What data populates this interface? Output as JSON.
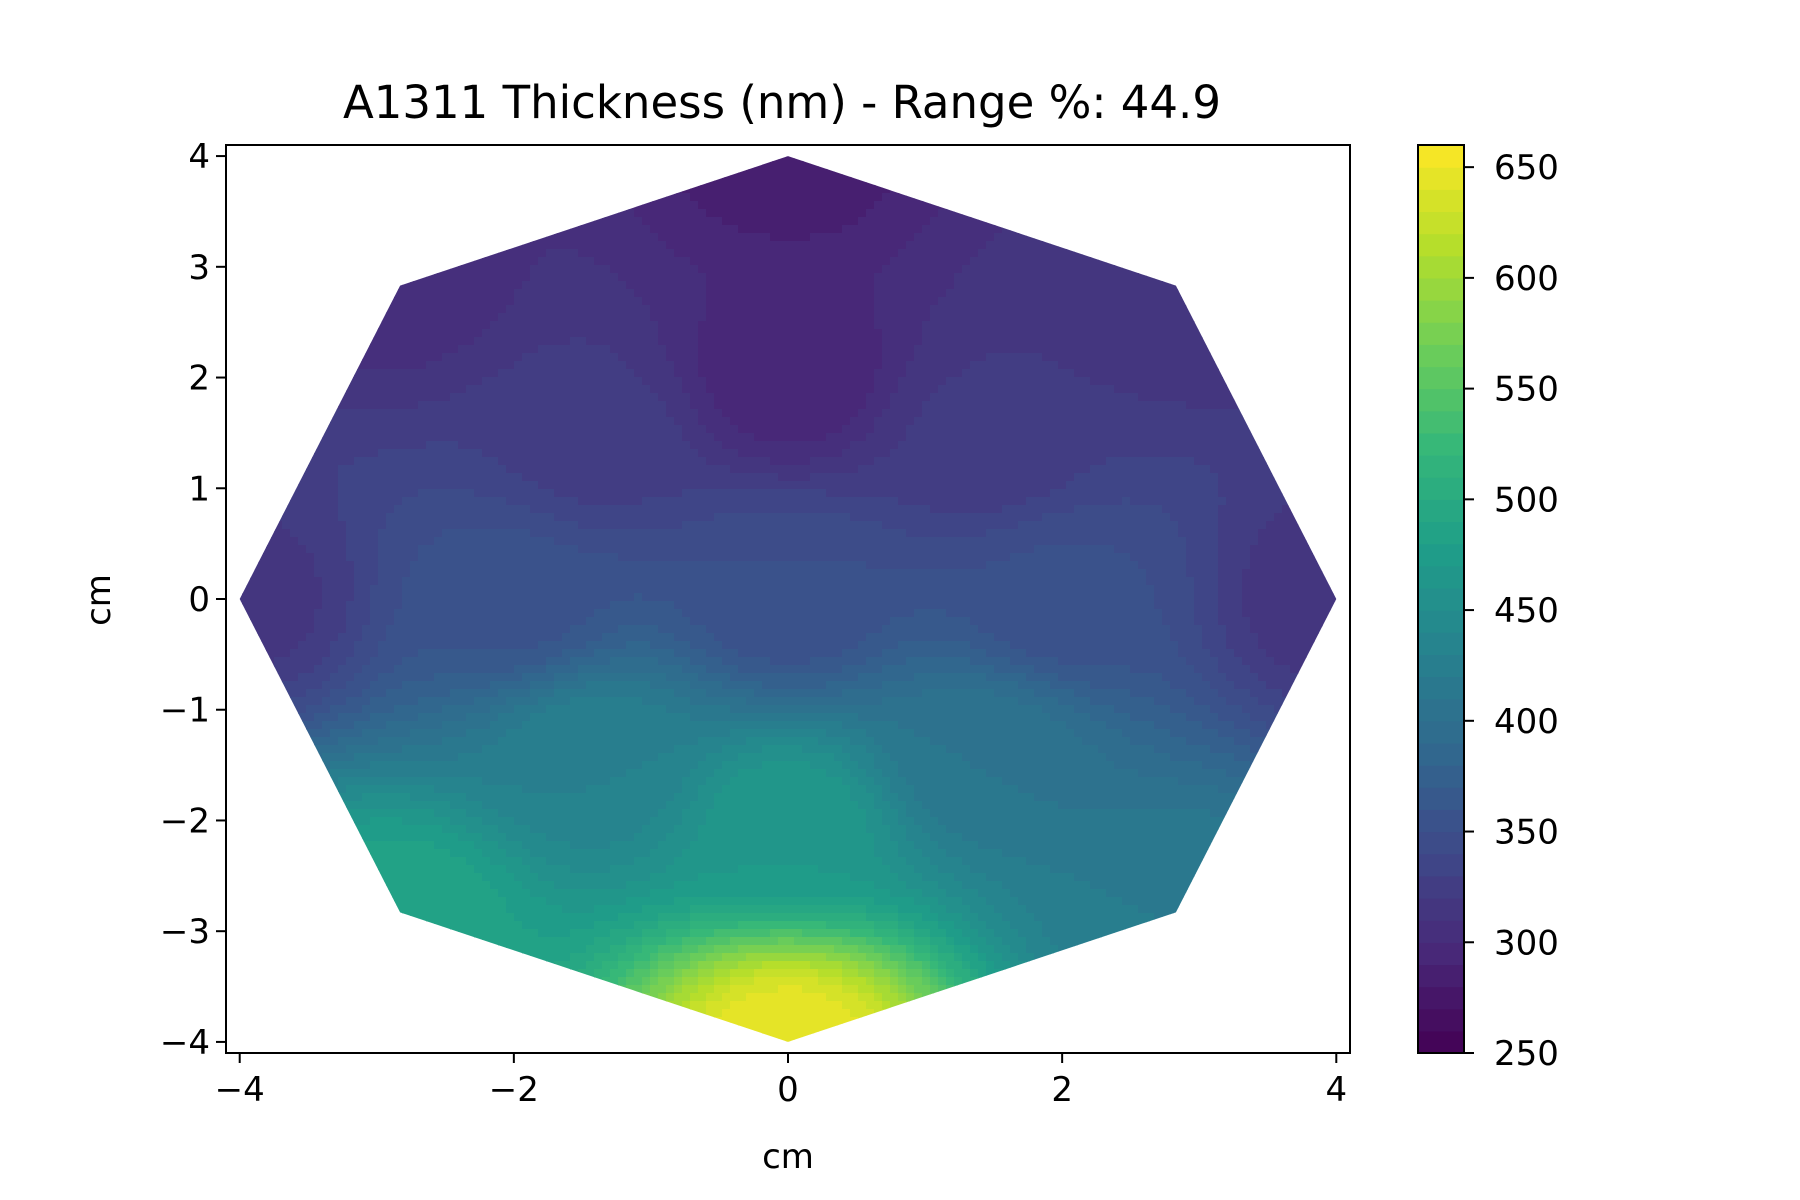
{
  "chart_data": {
    "type": "heatmap",
    "subtype": "filled-contour",
    "title": "A1311 Thickness (nm) - Range %: 44.9",
    "xlabel": "cm",
    "ylabel": "cm",
    "xlim": [
      -4.1,
      4.1
    ],
    "ylim": [
      -4.1,
      4.1
    ],
    "x_ticks": [
      -4,
      -2,
      0,
      2,
      4
    ],
    "y_ticks": [
      -4,
      -3,
      -2,
      -1,
      0,
      1,
      2,
      3,
      4
    ],
    "x_tick_labels": [
      "−4",
      "−2",
      "0",
      "2",
      "4"
    ],
    "y_tick_labels": [
      "−4",
      "−3",
      "−2",
      "−1",
      "0",
      "1",
      "2",
      "3",
      "4"
    ],
    "grid": false,
    "colormap": "viridis",
    "colorbar": {
      "range": [
        250,
        660
      ],
      "ticks": [
        250,
        300,
        350,
        400,
        450,
        500,
        550,
        600,
        650
      ],
      "tick_labels": [
        "250",
        "300",
        "350",
        "400",
        "450",
        "500",
        "550",
        "600",
        "650"
      ]
    },
    "points": [
      {
        "x": 0,
        "y": 4,
        "value": 285
      },
      {
        "x": 2.83,
        "y": 2.83,
        "value": 310
      },
      {
        "x": 4,
        "y": 0,
        "value": 312
      },
      {
        "x": 2.83,
        "y": -2.83,
        "value": 420
      },
      {
        "x": 0,
        "y": -4,
        "value": 650
      },
      {
        "x": -2.83,
        "y": -2.83,
        "value": 490
      },
      {
        "x": -4,
        "y": 0,
        "value": 315
      },
      {
        "x": -2.83,
        "y": 2.83,
        "value": 305
      },
      {
        "x": 0,
        "y": 2,
        "value": 290
      },
      {
        "x": 1.41,
        "y": 1.41,
        "value": 322
      },
      {
        "x": 2,
        "y": 0,
        "value": 352
      },
      {
        "x": 1.41,
        "y": -1.41,
        "value": 410
      },
      {
        "x": 0,
        "y": -2,
        "value": 470
      },
      {
        "x": -1.41,
        "y": -1.41,
        "value": 430
      },
      {
        "x": -2,
        "y": 0,
        "value": 355
      },
      {
        "x": -1.41,
        "y": 1.41,
        "value": 325
      },
      {
        "x": 0,
        "y": 0,
        "value": 350
      }
    ]
  }
}
